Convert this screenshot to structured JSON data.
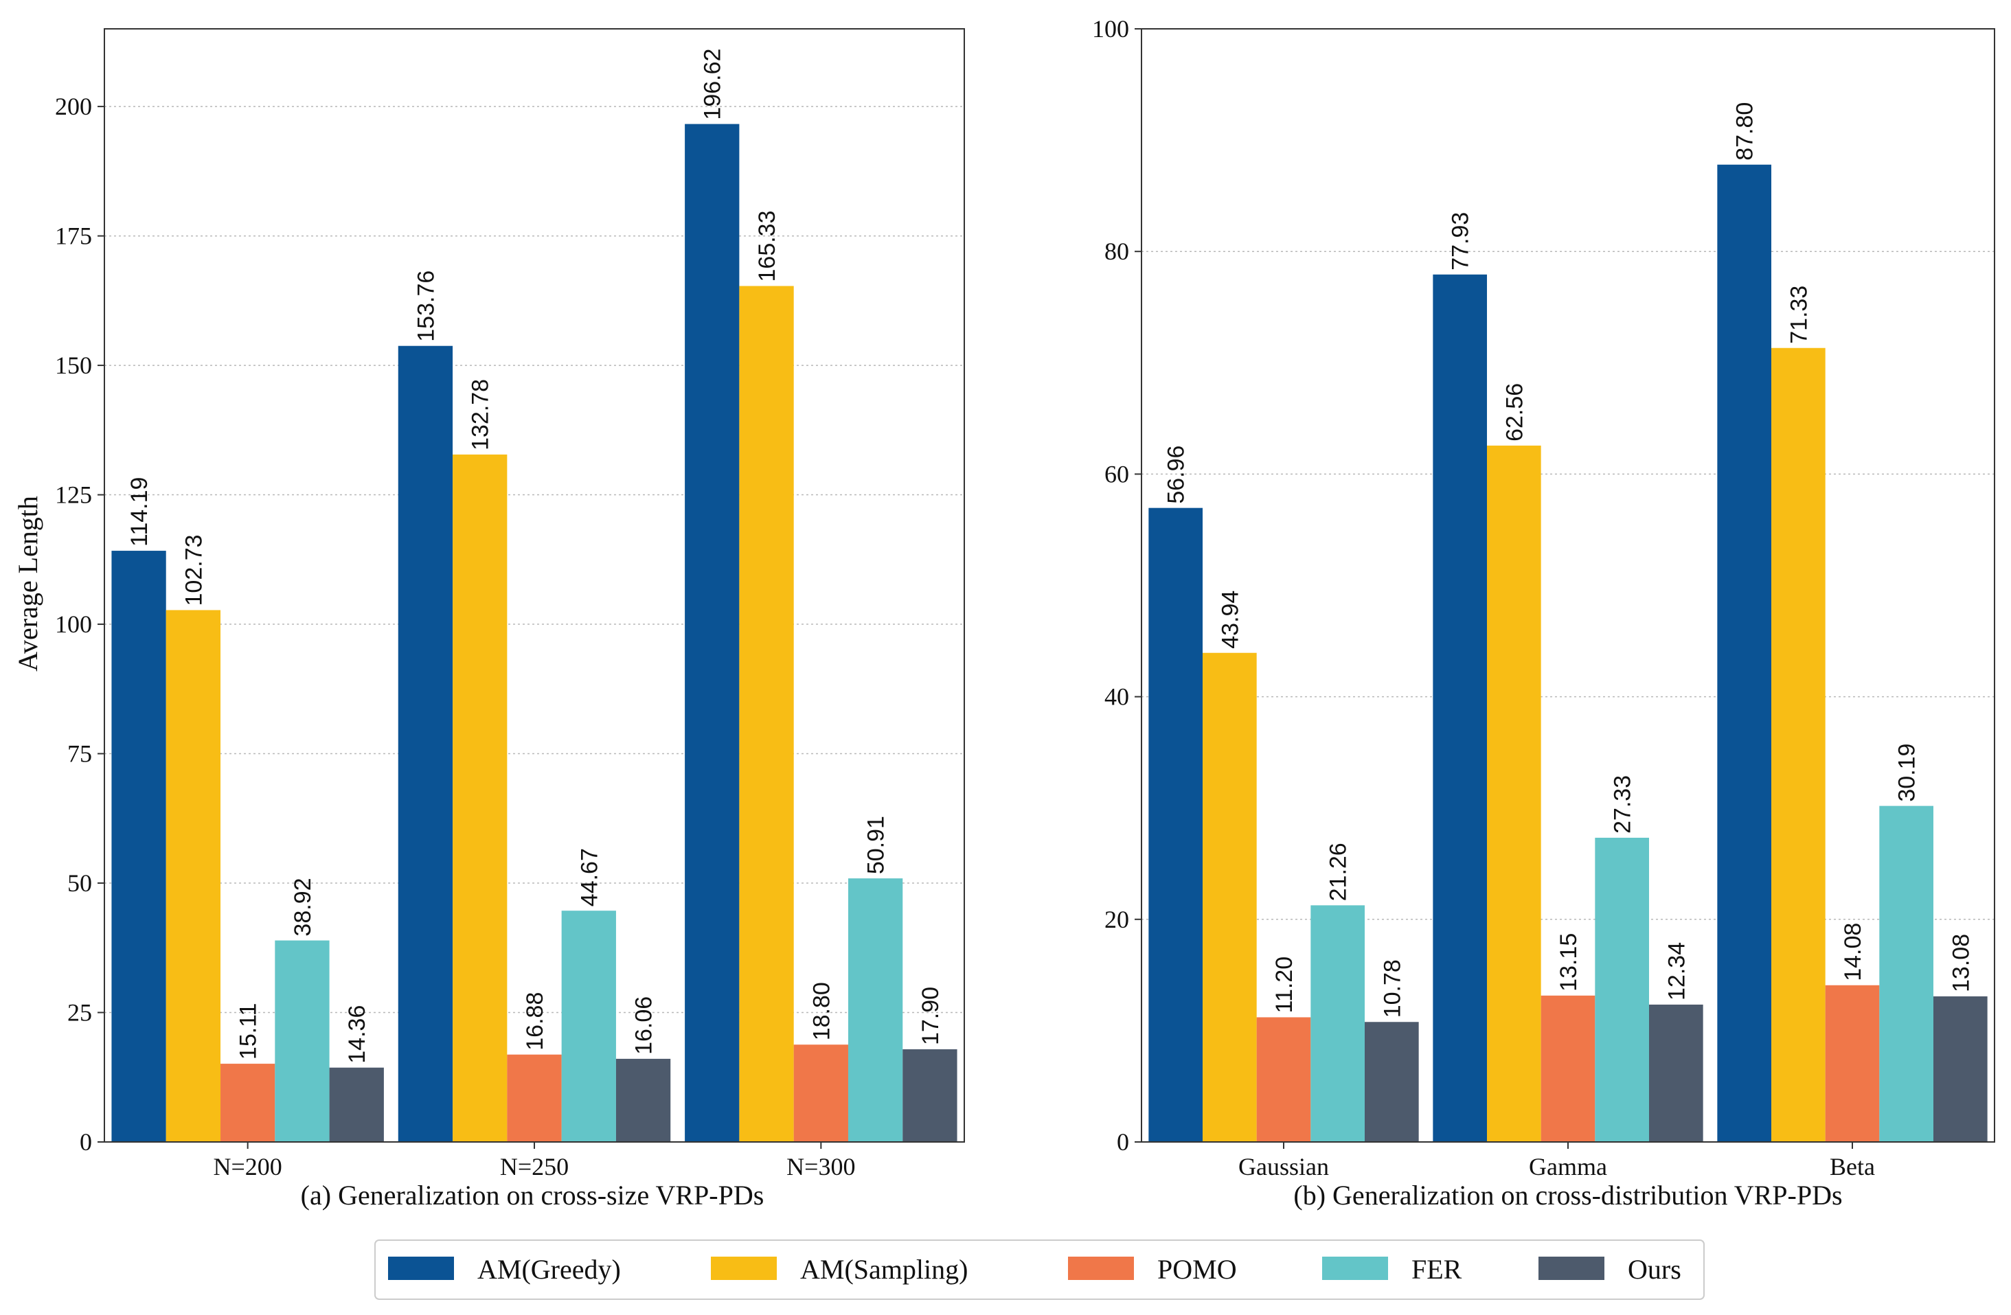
{
  "legend": {
    "series": [
      {
        "name": "AM(Greedy)",
        "color": "#0b5394"
      },
      {
        "name": "AM(Sampling)",
        "color": "#f8bd15"
      },
      {
        "name": "POMO",
        "color": "#f07749"
      },
      {
        "name": "FER",
        "color": "#63c5c8"
      },
      {
        "name": "Ours",
        "color": "#4d5a6c"
      }
    ]
  },
  "chart_data": [
    {
      "type": "bar",
      "title": "",
      "caption": "(a) Generalization on cross-size VRP-PDs",
      "xlabel": "",
      "ylabel": "Average Length",
      "ylim": [
        0,
        215
      ],
      "yticks": [
        0,
        25,
        50,
        75,
        100,
        125,
        150,
        175,
        200
      ],
      "grid": "horizontal-dotted",
      "categories": [
        "N=200",
        "N=250",
        "N=300"
      ],
      "series": [
        {
          "name": "AM(Greedy)",
          "values": [
            114.19,
            153.76,
            196.62
          ],
          "labels": [
            "114.19",
            "153.76",
            "196.62"
          ]
        },
        {
          "name": "AM(Sampling)",
          "values": [
            102.73,
            132.78,
            165.33
          ],
          "labels": [
            "102.73",
            "132.78",
            "165.33"
          ]
        },
        {
          "name": "POMO",
          "values": [
            15.11,
            16.88,
            18.8
          ],
          "labels": [
            "15.11",
            "16.88",
            "18.80"
          ]
        },
        {
          "name": "FER",
          "values": [
            38.92,
            44.67,
            50.91
          ],
          "labels": [
            "38.92",
            "44.67",
            "50.91"
          ]
        },
        {
          "name": "Ours",
          "values": [
            14.36,
            16.06,
            17.9
          ],
          "labels": [
            "14.36",
            "16.06",
            "17.90"
          ]
        }
      ]
    },
    {
      "type": "bar",
      "title": "",
      "caption": "(b) Generalization on cross-distribution VRP-PDs",
      "xlabel": "",
      "ylabel": "",
      "ylim": [
        0,
        100
      ],
      "yticks": [
        0,
        20,
        40,
        60,
        80,
        100
      ],
      "grid": "horizontal-dotted",
      "categories": [
        "Gaussian",
        "Gamma",
        "Beta"
      ],
      "series": [
        {
          "name": "AM(Greedy)",
          "values": [
            56.96,
            77.93,
            87.8
          ],
          "labels": [
            "56.96",
            "77.93",
            "87.80"
          ]
        },
        {
          "name": "AM(Sampling)",
          "values": [
            43.94,
            62.56,
            71.33
          ],
          "labels": [
            "43.94",
            "62.56",
            "71.33"
          ]
        },
        {
          "name": "POMO",
          "values": [
            11.2,
            13.15,
            14.08
          ],
          "labels": [
            "11.20",
            "13.15",
            "14.08"
          ]
        },
        {
          "name": "FER",
          "values": [
            21.26,
            27.33,
            30.19
          ],
          "labels": [
            "21.26",
            "27.33",
            "30.19"
          ]
        },
        {
          "name": "Ours",
          "values": [
            10.78,
            12.34,
            13.08
          ],
          "labels": [
            "10.78",
            "12.34",
            "13.08"
          ]
        }
      ]
    }
  ]
}
